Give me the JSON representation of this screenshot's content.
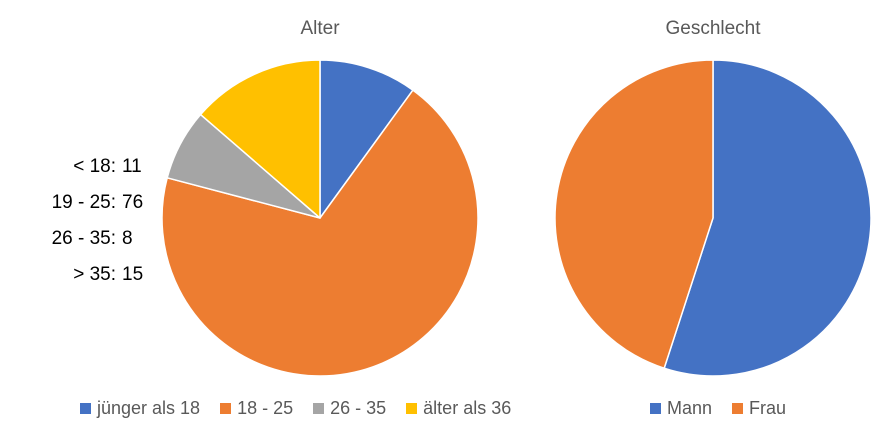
{
  "chart_data": [
    {
      "type": "pie",
      "title": "Alter",
      "categories": [
        "jünger als 18",
        "18 - 25",
        "26 - 35",
        "älter als 36"
      ],
      "values": [
        11,
        76,
        8,
        15
      ],
      "colors": [
        "#4472C4",
        "#ED7D31",
        "#A5A5A5",
        "#FFC000"
      ],
      "legend_position": "bottom",
      "counts": [
        {
          "label": "< 18:",
          "value": "11"
        },
        {
          "label": "19 - 25:",
          "value": "76"
        },
        {
          "label": "26 - 35:",
          "value": "8"
        },
        {
          "label": "> 35:",
          "value": "15"
        }
      ]
    },
    {
      "type": "pie",
      "title": "Geschlecht",
      "categories": [
        "Mann",
        "Frau"
      ],
      "values": [
        55,
        45
      ],
      "colors": [
        "#4472C4",
        "#ED7D31"
      ],
      "legend_position": "bottom"
    }
  ]
}
